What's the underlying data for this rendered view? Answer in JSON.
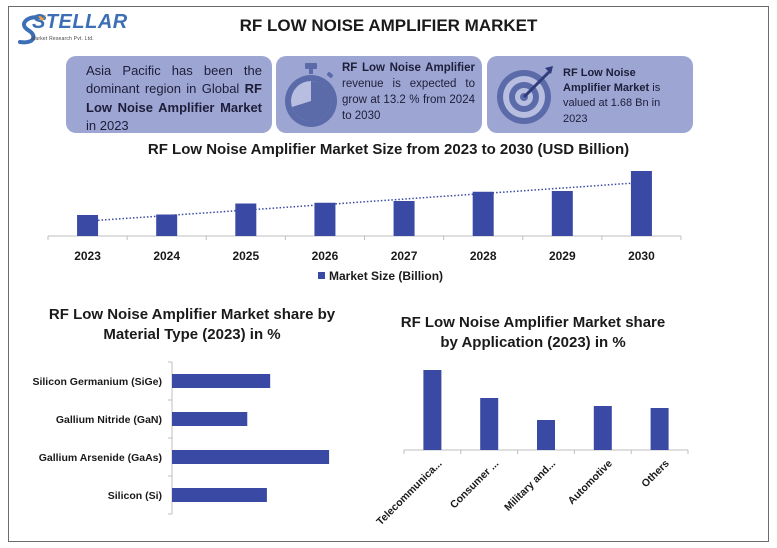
{
  "brand": {
    "name": "STELLAR",
    "tagline": "Market Research Pvt. Ltd."
  },
  "title": "RF LOW NOISE AMPLIFIER MARKET",
  "cards": {
    "region": {
      "pre": "Asia Pacific has been the dominant region in Global ",
      "bold": "RF Low Noise Amplifier Market",
      "post": " in 2023"
    },
    "growth": {
      "bold": "RF Low Noise Amplifier",
      "post": " revenue is expected to grow at 13.2 % from 2024 to 2030"
    },
    "value": {
      "bold": "RF Low Noise Amplifier Market",
      "post": " is valued at 1.68 Bn in 2023"
    }
  },
  "icons": {
    "growth": "stopwatch-icon",
    "value": "target-icon"
  },
  "colors": {
    "bar": "#3a4aa4",
    "card": "#9da6d3",
    "trend": "#3a4aa4"
  },
  "chart_data": [
    {
      "type": "bar",
      "title": "RF Low Noise Amplifier Market Size from 2023 to 2030 (USD Billion)",
      "categories": [
        "2023",
        "2024",
        "2025",
        "2026",
        "2027",
        "2028",
        "2029",
        "2030"
      ],
      "series": [
        {
          "name": "Market Size (Billion)",
          "values": [
            1.68,
            1.72,
            2.6,
            2.66,
            2.8,
            3.54,
            3.6,
            5.2
          ]
        }
      ],
      "trendline": "linear",
      "ylim": [
        0,
        5.6
      ],
      "legend": "bottom"
    },
    {
      "type": "bar",
      "orientation": "horizontal",
      "title": "RF Low Noise Amplifier Market share by Material Type (2023) in %",
      "categories": [
        "Silicon Germanium (SiGe)",
        "Gallium Nitride (GaN)",
        "Gallium Arsenide (GaAs)",
        "Silicon (Si)"
      ],
      "values": [
        30,
        23,
        48,
        29
      ],
      "xlim": [
        0,
        55
      ]
    },
    {
      "type": "bar",
      "title": "RF Low Noise Amplifier Market share by Application (2023) in %",
      "categories": [
        "Telecommunica...",
        "Consumer ...",
        "Military and...",
        "Automotive",
        "Others"
      ],
      "values": [
        40,
        26,
        15,
        22,
        21
      ],
      "ylim": [
        0,
        40
      ]
    }
  ]
}
